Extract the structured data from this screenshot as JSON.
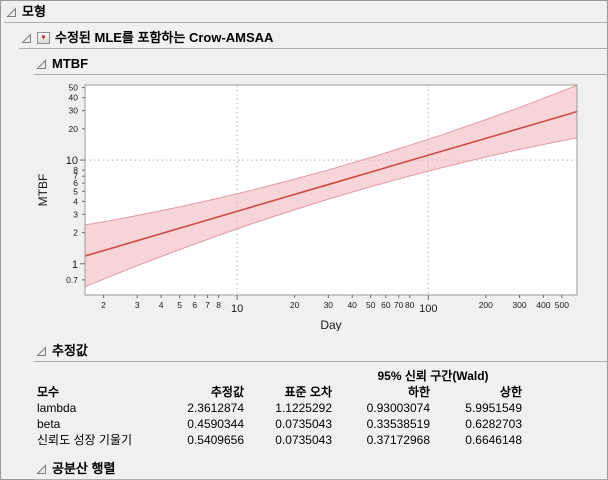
{
  "window": {
    "bg": "#f0f0f0"
  },
  "outline": {
    "root_title": "모형",
    "model_title": "수정된 MLE를 포함하는 Crow-AMSAA",
    "mtbf_title": "MTBF",
    "estimates_title": "추정값",
    "covariance_title": "공분산 행렬"
  },
  "estimates_table": {
    "ci_header": "95% 신뢰 구간(Wald)",
    "columns": [
      "모수",
      "추정값",
      "표준 오차",
      "하한",
      "상한"
    ],
    "rows": [
      {
        "param": "lambda",
        "estimate": "2.3612874",
        "std_error": "1.1225292",
        "lower": "0.93003074",
        "upper": "5.9951549"
      },
      {
        "param": "beta",
        "estimate": "0.4590344",
        "std_error": "0.0735043",
        "lower": "0.33538519",
        "upper": "0.6282703"
      },
      {
        "param": "신뢰도 성장 기울기",
        "estimate": "0.5409656",
        "std_error": "0.0735043",
        "lower": "0.37172968",
        "upper": "0.6646148"
      }
    ]
  },
  "chart_data": {
    "type": "line",
    "title": "MTBF",
    "xlabel": "Day",
    "ylabel": "MTBF",
    "xscale": "log",
    "yscale": "log",
    "xlim": [
      1.6,
      600
    ],
    "ylim": [
      0.5,
      53
    ],
    "x_ticks": [
      2,
      3,
      4,
      5,
      6,
      7,
      8,
      10,
      20,
      30,
      40,
      50,
      60,
      70,
      80,
      100,
      200,
      300,
      400,
      500
    ],
    "x_major_ticks": [
      10,
      100
    ],
    "y_ticks": [
      0.7,
      1,
      2,
      3,
      4,
      5,
      6,
      7,
      8,
      10,
      20,
      30,
      40,
      50
    ],
    "y_major_ticks": [
      1,
      10
    ],
    "grid_x": [
      10,
      100
    ],
    "grid_y": [
      10
    ],
    "grid_on": true,
    "legend_position": "none",
    "line_color": "#cf4a45",
    "band_fill": "#f0b9be",
    "band_stroke": "#e39ba1",
    "grid_color": "#b5b5b5",
    "frame_color": "#9b9b9b",
    "series": [
      {
        "name": "MTBF estimate",
        "x": [
          1.6,
          2,
          3,
          5,
          8,
          12,
          20,
          30,
          50,
          80,
          120,
          200,
          300,
          450,
          600
        ],
        "y": [
          1.19,
          1.34,
          1.67,
          2.2,
          2.84,
          3.54,
          4.67,
          5.81,
          7.66,
          9.88,
          12.3,
          16.21,
          20.19,
          25.14,
          29.37
        ]
      },
      {
        "name": "95% CI lower",
        "x": [
          1.6,
          2,
          3,
          5,
          8,
          12,
          20,
          30,
          50,
          80,
          120,
          200,
          300,
          450,
          600
        ],
        "y": [
          0.6,
          0.71,
          0.96,
          1.37,
          1.88,
          2.44,
          3.32,
          4.2,
          5.54,
          7.03,
          8.53,
          10.71,
          12.66,
          14.79,
          16.39
        ]
      },
      {
        "name": "95% CI upper",
        "x": [
          1.6,
          2,
          3,
          5,
          8,
          12,
          20,
          30,
          50,
          80,
          120,
          200,
          300,
          450,
          600
        ],
        "y": [
          2.37,
          2.54,
          2.92,
          3.54,
          4.3,
          5.14,
          6.55,
          8.04,
          10.59,
          13.88,
          17.72,
          24.55,
          32.2,
          42.74,
          52.64
        ]
      }
    ]
  }
}
